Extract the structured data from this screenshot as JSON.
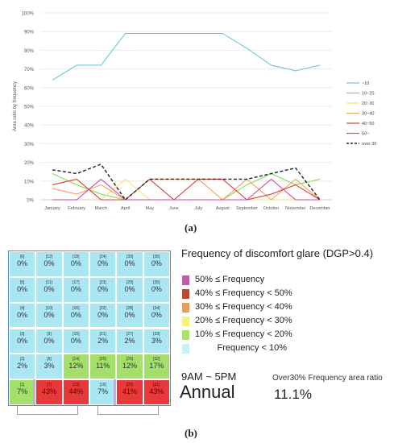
{
  "figure_a": {
    "caption": "(a)",
    "chart_data": {
      "type": "line",
      "ylabel": "Area ratio by frequency",
      "xlabel": "",
      "ylim": [
        0,
        100
      ],
      "yticks": [
        "0%",
        "10%",
        "20%",
        "30%",
        "40%",
        "50%",
        "60%",
        "70%",
        "80%",
        "90%",
        "100%"
      ],
      "categories": [
        "January",
        "February",
        "March",
        "April",
        "May",
        "June",
        "July",
        "August",
        "September",
        "October",
        "November",
        "December"
      ],
      "grid": true,
      "legend_position": "right",
      "series": [
        {
          "name": "~10",
          "color": "#6cc7dc",
          "dash": false,
          "values": [
            64,
            72,
            72,
            89,
            89,
            89,
            89,
            89,
            81,
            72,
            69,
            72
          ]
        },
        {
          "name": "10~20",
          "color": "#7ed957",
          "dash": false,
          "values": [
            14,
            8,
            3,
            0,
            0,
            0,
            0,
            0,
            8,
            14,
            8,
            11
          ]
        },
        {
          "name": "20~30",
          "color": "#f3e26a",
          "dash": false,
          "values": [
            8,
            11,
            0,
            11,
            0,
            0,
            0,
            0,
            0,
            0,
            0,
            0
          ]
        },
        {
          "name": "30~40",
          "color": "#f0a35a",
          "dash": false,
          "values": [
            6,
            3,
            8,
            0,
            11,
            11,
            11,
            0,
            11,
            0,
            11,
            0
          ]
        },
        {
          "name": "40~50",
          "color": "#e03c3c",
          "dash": false,
          "values": [
            8,
            11,
            0,
            0,
            11,
            0,
            11,
            11,
            0,
            3,
            8,
            0
          ]
        },
        {
          "name": "50~",
          "color": "#d9419c",
          "dash": false,
          "values": [
            0,
            0,
            11,
            0,
            0,
            0,
            0,
            0,
            0,
            11,
            0,
            0
          ]
        },
        {
          "name": "over 30",
          "color": "#222222",
          "dash": true,
          "values": [
            16,
            14,
            19,
            0,
            11,
            11,
            11,
            11,
            11,
            14,
            17,
            0
          ]
        }
      ]
    }
  },
  "figure_b": {
    "caption": "(b)",
    "title": "Frequency of discomfort glare (DGP>0.4)",
    "legend": [
      {
        "label": "50% ≤ Frequency",
        "color": "#c05dab"
      },
      {
        "label": "40% ≤ Frequency < 50%",
        "color": "#bd4a2e"
      },
      {
        "label": "30% ≤ Frequency < 40%",
        "color": "#e2a15b"
      },
      {
        "label": "20% ≤ Frequency < 30%",
        "color": "#f4f27a"
      },
      {
        "label": "10% ≤ Frequency < 20%",
        "color": "#a9e36b"
      },
      {
        "label": "         Frequency < 10%",
        "color": "#c8f0f8"
      }
    ],
    "time_range": "9AM ~ 5PM",
    "period": "Annual",
    "over_label": "Over30% Frequency area ratio",
    "over_value": "11.1%",
    "colors": {
      "low": "#a9e7f3",
      "ten": "#a3e06b",
      "forty": "#e8383a",
      "fifty": "#d7a3e0"
    },
    "columns": [
      [
        {
          "id": "[1]",
          "value": "7%",
          "class": "ten"
        },
        {
          "id": "[2]",
          "value": "2%",
          "class": "low"
        },
        {
          "id": "[3]",
          "value": "0%",
          "class": "low"
        },
        {
          "id": "[4]",
          "value": "0%",
          "class": "low"
        },
        {
          "id": "[5]",
          "value": "0%",
          "class": "low"
        },
        {
          "id": "[6]",
          "value": "0%",
          "class": "low"
        }
      ],
      [
        {
          "id": "[7]",
          "value": "43%",
          "class": "forty"
        },
        {
          "id": "[8]",
          "value": "3%",
          "class": "low"
        },
        {
          "id": "[9]",
          "value": "0%",
          "class": "low"
        },
        {
          "id": "[10]",
          "value": "0%",
          "class": "low"
        },
        {
          "id": "[11]",
          "value": "0%",
          "class": "low"
        },
        {
          "id": "[12]",
          "value": "0%",
          "class": "low"
        }
      ],
      [
        {
          "id": "[13]",
          "value": "44%",
          "class": "forty"
        },
        {
          "id": "[14]",
          "value": "12%",
          "class": "ten"
        },
        {
          "id": "[15]",
          "value": "0%",
          "class": "low"
        },
        {
          "id": "[16]",
          "value": "0%",
          "class": "low"
        },
        {
          "id": "[17]",
          "value": "0%",
          "class": "low"
        },
        {
          "id": "[18]",
          "value": "0%",
          "class": "low"
        }
      ],
      [
        {
          "id": "[19]",
          "value": "7%",
          "class": "low"
        },
        {
          "id": "[20]",
          "value": "11%",
          "class": "ten"
        },
        {
          "id": "[21]",
          "value": "2%",
          "class": "low"
        },
        {
          "id": "[22]",
          "value": "0%",
          "class": "low"
        },
        {
          "id": "[23]",
          "value": "0%",
          "class": "low"
        },
        {
          "id": "[24]",
          "value": "0%",
          "class": "low"
        }
      ],
      [
        {
          "id": "[25]",
          "value": "41%",
          "class": "forty"
        },
        {
          "id": "[26]",
          "value": "12%",
          "class": "ten"
        },
        {
          "id": "[27]",
          "value": "2%",
          "class": "low"
        },
        {
          "id": "[28]",
          "value": "0%",
          "class": "low"
        },
        {
          "id": "[29]",
          "value": "0%",
          "class": "low"
        },
        {
          "id": "[30]",
          "value": "0%",
          "class": "low"
        }
      ],
      [
        {
          "id": "[31]",
          "value": "43%",
          "class": "forty"
        },
        {
          "id": "[32]",
          "value": "17%",
          "class": "ten"
        },
        {
          "id": "[33]",
          "value": "3%",
          "class": "low"
        },
        {
          "id": "[34]",
          "value": "0%",
          "class": "low"
        },
        {
          "id": "[35]",
          "value": "0%",
          "class": "low"
        },
        {
          "id": "[36]",
          "value": "0%",
          "class": "low"
        }
      ]
    ]
  }
}
